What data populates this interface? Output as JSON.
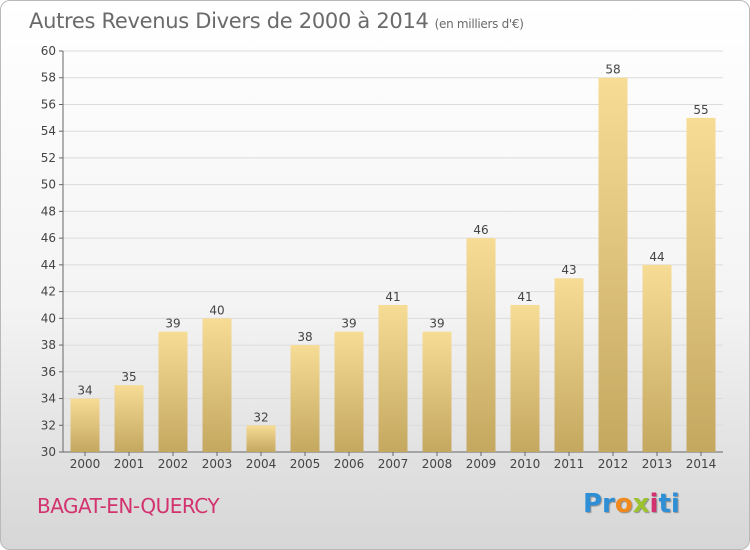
{
  "header": {
    "title": "Autres Revenus Divers de 2000 à 2014",
    "unit": "(en milliers d'€)"
  },
  "footer": {
    "town": "BAGAT-EN-QUERCY",
    "logo_parts": [
      "Pr",
      "o",
      "x",
      "i",
      "ti"
    ]
  },
  "colors": {
    "bar_top": "#f7dc96",
    "bar_bottom": "#c4a860",
    "grid": "#dcdcdc",
    "axis": "#666666",
    "title": "#6a6a6a",
    "town": "#d2336f"
  },
  "chart_data": {
    "type": "bar",
    "title": "Autres Revenus Divers de 2000 à 2014",
    "ylabel": "(en milliers d'€)",
    "xlabel": "",
    "categories": [
      "2000",
      "2001",
      "2002",
      "2003",
      "2004",
      "2005",
      "2006",
      "2007",
      "2008",
      "2009",
      "2010",
      "2011",
      "2012",
      "2013",
      "2014"
    ],
    "values": [
      34,
      35,
      39,
      40,
      32,
      38,
      39,
      41,
      39,
      46,
      41,
      43,
      58,
      44,
      55
    ],
    "ylim": [
      30,
      60
    ],
    "yticks": [
      30,
      32,
      34,
      36,
      38,
      40,
      42,
      44,
      46,
      48,
      50,
      52,
      54,
      56,
      58,
      60
    ],
    "grid": true
  }
}
